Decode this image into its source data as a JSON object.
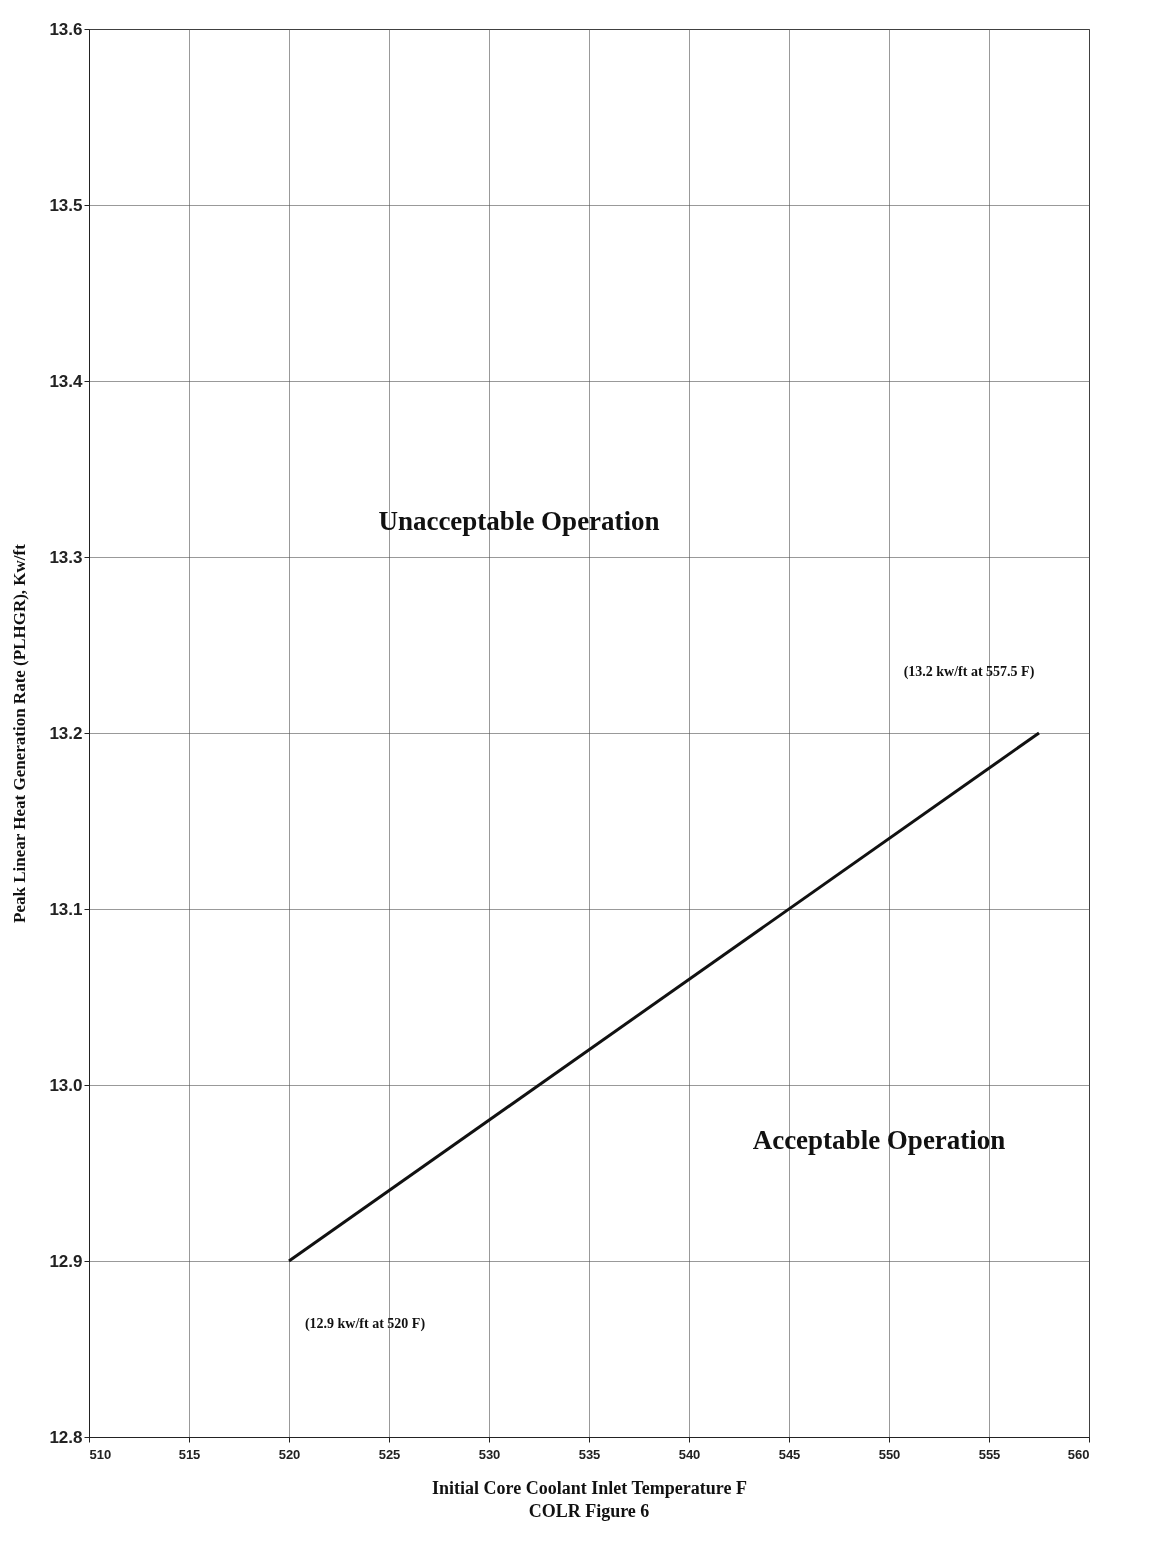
{
  "chart_data": {
    "type": "line",
    "title": "COLR Figure 6",
    "xlabel": "Initial Core Coolant Inlet Temperature F",
    "ylabel": "Peak Linear Heat Generation Rate (PLHGR), Kw/ft",
    "x": [
      520,
      557.5
    ],
    "series": [
      {
        "color": "#111111",
        "values": [
          12.9,
          13.2
        ]
      }
    ],
    "xlim": [
      510,
      560
    ],
    "xticks": [
      510,
      515,
      520,
      525,
      530,
      535,
      540,
      545,
      550,
      555,
      560
    ],
    "ylim": [
      12.8,
      13.6
    ],
    "yticks": [
      12.8,
      12.9,
      {
        "value": 13.0,
        "label": "13.0"
      },
      13.1,
      13.2,
      13.3,
      13.4,
      13.5,
      13.6
    ],
    "grid": true,
    "marker": "none",
    "line_style": "solid",
    "legend": false,
    "annotations": [
      "Unacceptable Operation",
      "Acceptable Operation",
      "(12.9 kw/ft at 520 F)",
      "(13.2 kw/ft at 557.5 F)"
    ]
  }
}
